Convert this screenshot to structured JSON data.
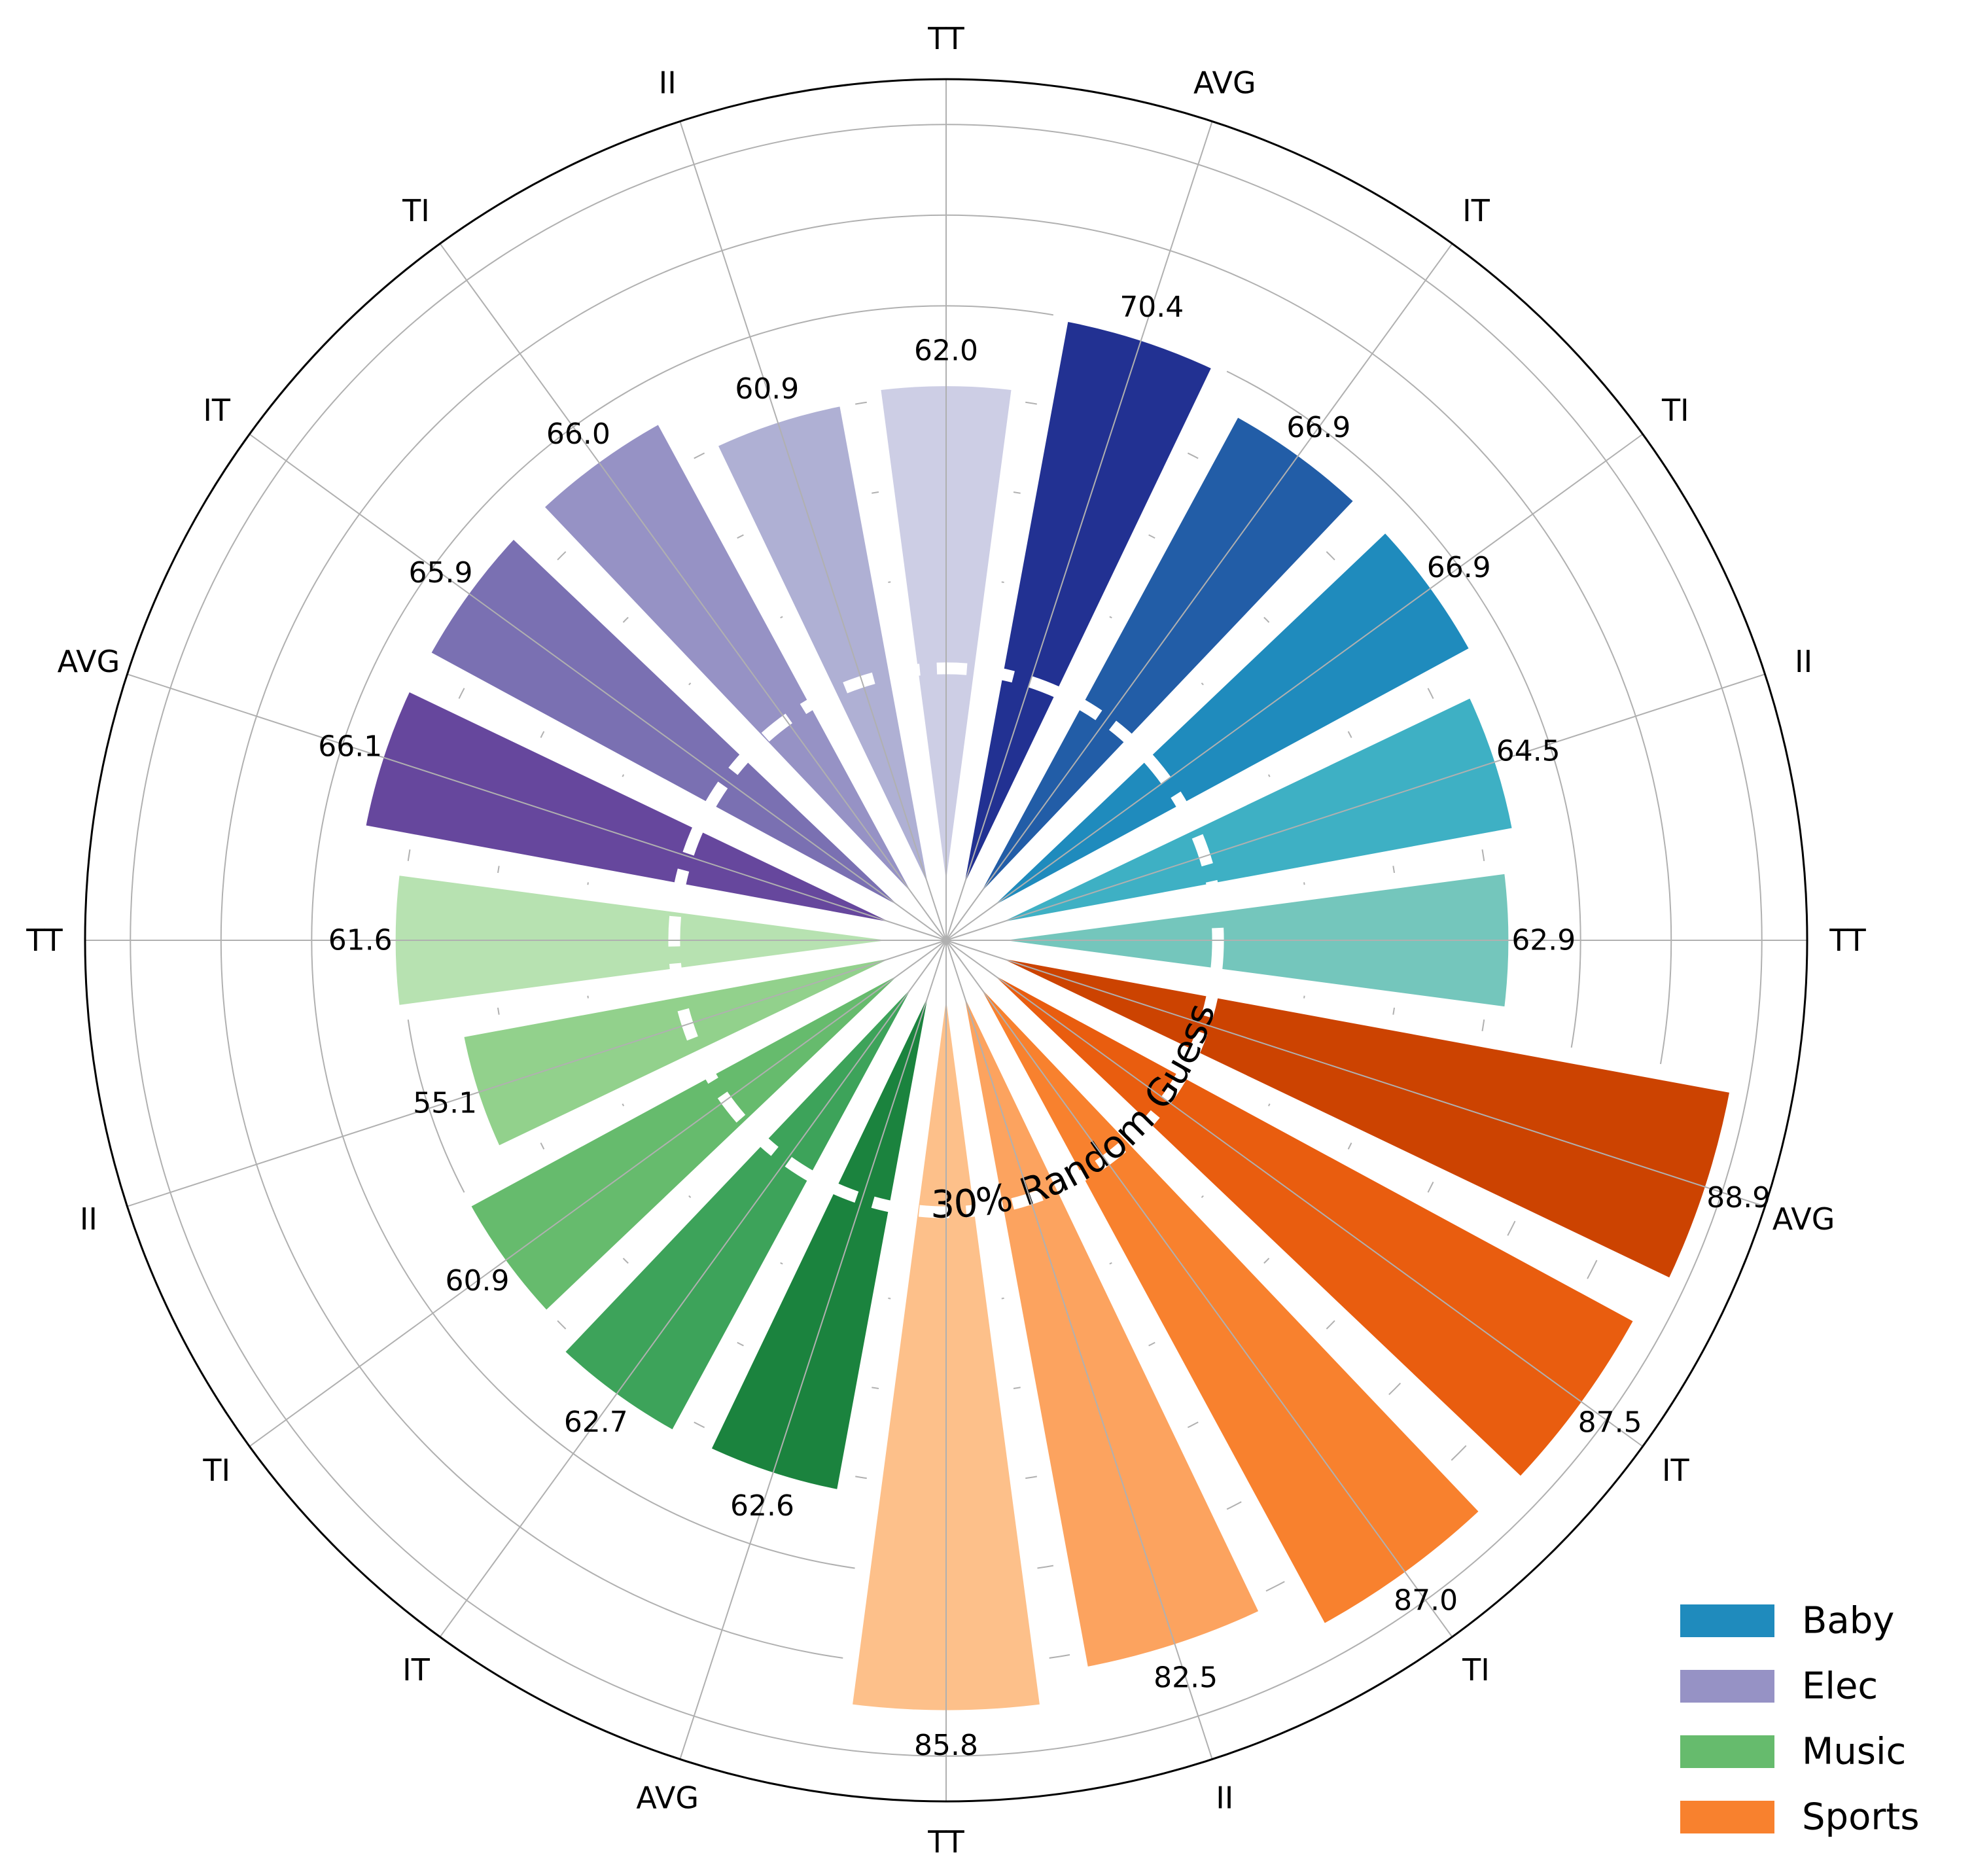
{
  "chart_data": {
    "type": "bar",
    "subtype": "polar",
    "theta_labels": [
      "TT",
      "II",
      "TI",
      "IT",
      "AVG",
      "TT",
      "II",
      "TI",
      "IT",
      "AVG",
      "TT",
      "II",
      "TI",
      "IT",
      "AVG",
      "TT",
      "II",
      "TI",
      "IT",
      "AVG"
    ],
    "values": [
      62.9,
      64.5,
      66.9,
      66.9,
      70.4,
      62.0,
      60.9,
      66.0,
      65.9,
      66.1,
      61.6,
      55.1,
      60.9,
      62.7,
      62.6,
      85.8,
      82.5,
      87.0,
      87.5,
      88.9
    ],
    "value_labels": [
      "62.9",
      "64.5",
      "66.9",
      "66.9",
      "70.4",
      "62.0",
      "60.9",
      "66.0",
      "65.9",
      "66.1",
      "61.6",
      "55.1",
      "60.9",
      "62.7",
      "62.6",
      "85.8",
      "82.5",
      "87.0",
      "87.5",
      "88.9"
    ],
    "series": [
      {
        "name": "Baby",
        "bar_indices": [
          0,
          1,
          2,
          3,
          4
        ],
        "colors": [
          "#74c6bc",
          "#3eb0c4",
          "#1f8bbd",
          "#225da7",
          "#223192"
        ],
        "legend_color": "#1f8bbd"
      },
      {
        "name": "Elec",
        "bar_indices": [
          5,
          6,
          7,
          8,
          9
        ],
        "colors": [
          "#cdcee5",
          "#afb0d4",
          "#9692c5",
          "#7a70b2",
          "#66479d"
        ],
        "legend_color": "#9692c5"
      },
      {
        "name": "Music",
        "bar_indices": [
          10,
          11,
          12,
          13,
          14
        ],
        "colors": [
          "#b7e2b1",
          "#92d18c",
          "#66bb6d",
          "#3da35a",
          "#1b833e"
        ],
        "legend_color": "#66bb6d"
      },
      {
        "name": "Sports",
        "bar_indices": [
          15,
          16,
          17,
          18,
          19
        ],
        "colors": [
          "#fdc08a",
          "#fca35f",
          "#f8812e",
          "#e95d0f",
          "#cc4301"
        ],
        "legend_color": "#f8812e"
      }
    ],
    "rmax": 95,
    "radial_gridlines": [
      10,
      20,
      30,
      40,
      50,
      60,
      70,
      80,
      90
    ],
    "grid": true,
    "reference_line": {
      "value": 30,
      "label": "30% Random Guess",
      "style": "dashed",
      "color": "#ffffff"
    },
    "legend_position": "bottom-right"
  }
}
